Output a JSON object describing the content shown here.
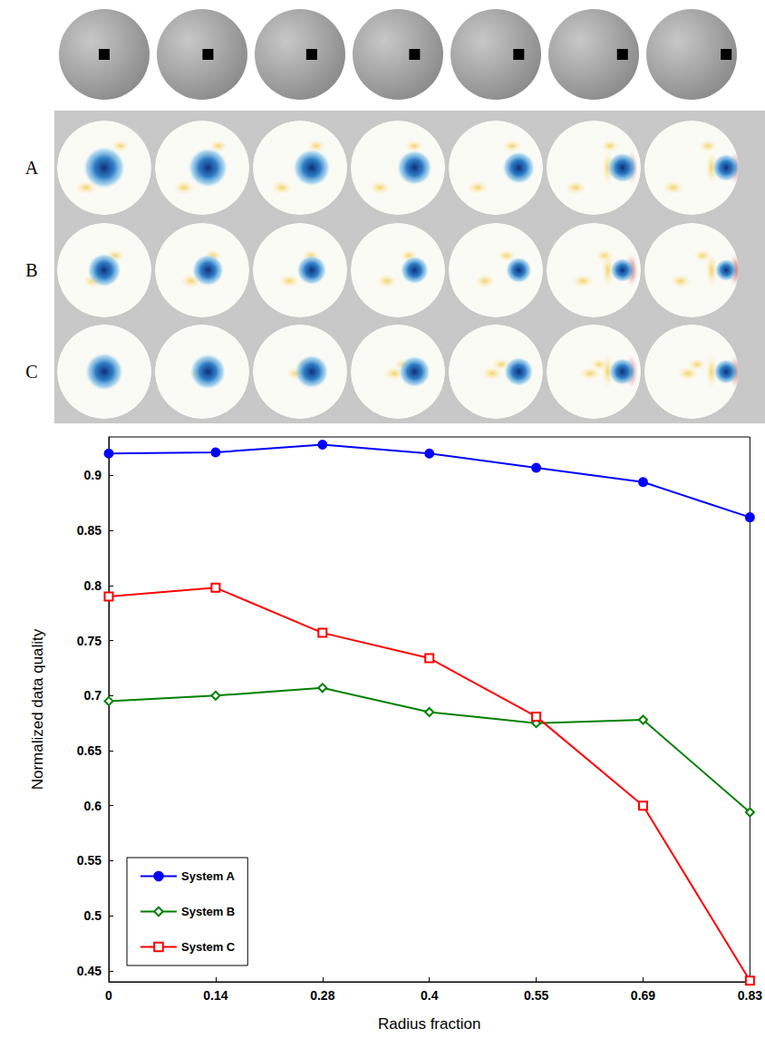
{
  "figure": {
    "row_labels": [
      "A",
      "B",
      "C"
    ]
  },
  "chart_data": {
    "type": "line",
    "x_label": "Radius fraction",
    "y_label": "Normalized data quality",
    "categories": [
      "0",
      "0.14",
      "0.28",
      "0.4",
      "0.55",
      "0.69",
      "0.83"
    ],
    "ylim": [
      0.44,
      0.935
    ],
    "yticks": [
      0.45,
      0.5,
      0.55,
      0.6,
      0.65,
      0.7,
      0.75,
      0.8,
      0.85,
      0.9
    ],
    "grid": false,
    "legend": "lower left",
    "series": [
      {
        "name": "System A",
        "color": "#0000ff",
        "marker": "circle",
        "values": [
          0.92,
          0.921,
          0.928,
          0.92,
          0.907,
          0.894,
          0.862
        ]
      },
      {
        "name": "System B",
        "color": "#008000",
        "marker": "diamond",
        "values": [
          0.695,
          0.7,
          0.707,
          0.685,
          0.675,
          0.678,
          0.594
        ]
      },
      {
        "name": "System C",
        "color": "#ff0000",
        "marker": "square",
        "values": [
          0.79,
          0.798,
          0.757,
          0.734,
          0.681,
          0.6,
          0.441
        ]
      }
    ]
  }
}
